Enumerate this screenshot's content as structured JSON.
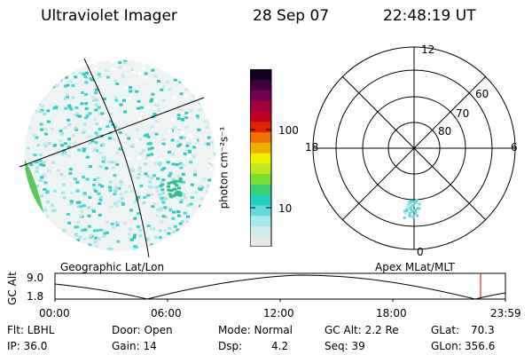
{
  "header": {
    "instrument": "Ultraviolet Imager",
    "date": "28 Sep 07",
    "time": "22:48:19 UT"
  },
  "colorbar": {
    "title": "photon cm⁻²s⁻¹",
    "ticks": [
      "100",
      "10"
    ],
    "colors": [
      "#e8e8e8",
      "#d0ecec",
      "#a8e8e8",
      "#60dcdc",
      "#20cfc0",
      "#38d070",
      "#78e030",
      "#c0e820",
      "#f0f000",
      "#f0b000",
      "#f07000",
      "#e02000",
      "#c00020",
      "#a00040",
      "#700050",
      "#400040",
      "#100020"
    ]
  },
  "geo_map": {
    "label": "Geographic Lat/Lon",
    "aurora_color": "#40d8d8",
    "edge_color": "#40c040"
  },
  "polar_plot": {
    "label": "Apex MLat/MLT",
    "mlt_labels": {
      "top": "12",
      "left": "18",
      "right": "6",
      "bottom": "0"
    },
    "lat_labels": [
      "60",
      "70",
      "80"
    ]
  },
  "altitude_plot": {
    "ylabel": "GC Alt",
    "yticks": [
      "9.0",
      "1.8"
    ],
    "xticks": [
      "00:00",
      "06:00",
      "12:00",
      "18:00",
      "23:59"
    ],
    "marker_color": "#cc0000"
  },
  "info": {
    "filter": "Flt: LBHL",
    "ip": "IP: 36.0",
    "door": "Door: Open",
    "gain": "Gain: 14",
    "mode": "Mode: Normal",
    "dsp_label": "Dsp:",
    "dsp_value": "4.2",
    "gc_alt": "GC Alt: 2.2 Re",
    "seq": "Seq: 39",
    "glat_label": "GLat:",
    "glat_value": "70.3",
    "glon_label": "GLon:",
    "glon_value": "356.6"
  }
}
